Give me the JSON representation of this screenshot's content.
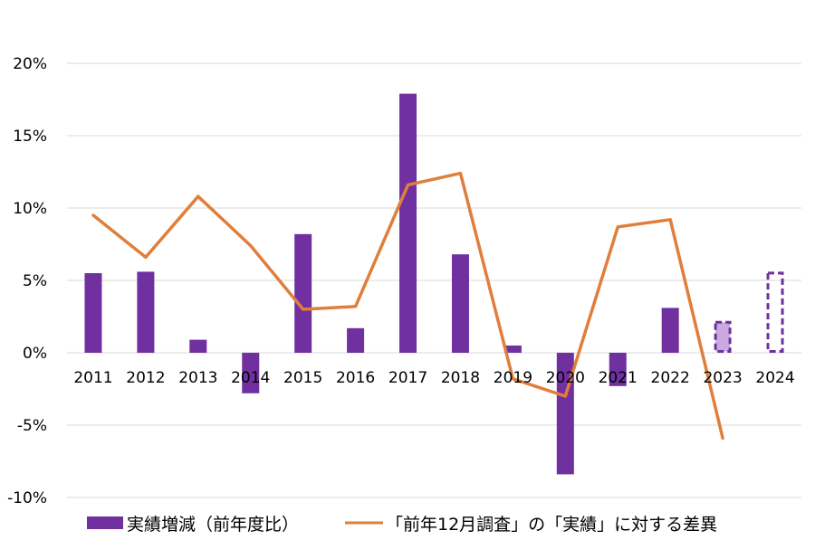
{
  "chart_data": {
    "type": "bar",
    "categories": [
      "2011",
      "2012",
      "2013",
      "2014",
      "2015",
      "2016",
      "2017",
      "2018",
      "2019",
      "2020",
      "2021",
      "2022",
      "2023",
      "2024"
    ],
    "series": [
      {
        "name": "実績増減（前年度比）",
        "type": "bar",
        "color": "#7030a0",
        "values": [
          5.5,
          5.6,
          0.9,
          -2.8,
          8.2,
          1.7,
          17.9,
          6.8,
          0.5,
          -8.4,
          -2.3,
          3.1,
          null,
          null
        ]
      },
      {
        "name": "「前年12月調査」の「実績」に対する差異",
        "type": "line",
        "color": "#e07e3c",
        "values": [
          9.5,
          6.6,
          10.8,
          7.4,
          3.0,
          3.2,
          11.6,
          12.4,
          -1.8,
          -3.0,
          8.7,
          9.2,
          -5.9,
          null
        ]
      }
    ],
    "forecast_bars": [
      {
        "category": "2023",
        "value": 2.2,
        "color": "#7030a0",
        "fill": "#c9a9e0"
      },
      {
        "category": "2024",
        "value": 5.6,
        "color": "#7030a0",
        "fill": "none"
      }
    ],
    "y_ticks": [
      "-10%",
      "-5%",
      "0%",
      "5%",
      "10%",
      "15%",
      "20%"
    ],
    "ylim": [
      -10,
      20
    ],
    "grid": true,
    "legend_position": "bottom"
  }
}
